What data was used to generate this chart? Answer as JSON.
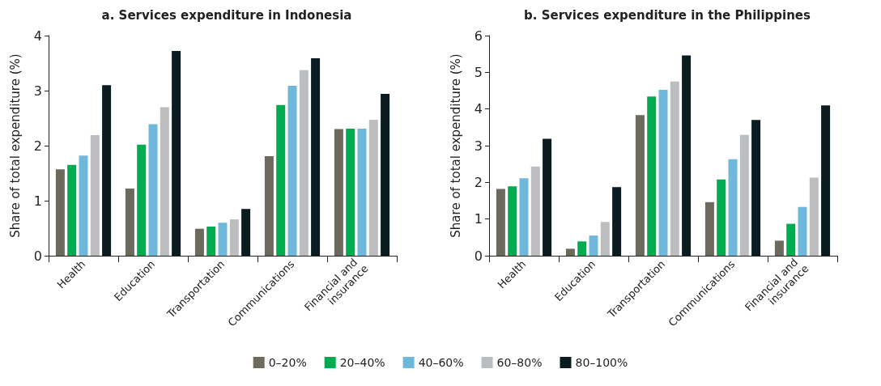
{
  "chart_data": [
    {
      "type": "bar",
      "title": "a. Services expenditure in Indonesia",
      "ylabel": "Share of total expenditure (%)",
      "categories": [
        "Health",
        "Education",
        "Transportation",
        "Communications",
        "Financial and insurance"
      ],
      "ylim": [
        0,
        4
      ],
      "yticks": [
        0,
        1,
        2,
        3,
        4
      ],
      "grid": false,
      "legend": false,
      "series": [
        {
          "color": "#6b6a5d",
          "values": [
            1.57,
            1.22,
            0.49,
            1.81,
            2.3
          ]
        },
        {
          "color": "#00ac50",
          "values": [
            1.65,
            2.02,
            0.53,
            2.74,
            2.31
          ]
        },
        {
          "color": "#6fb8db",
          "values": [
            1.82,
            2.39,
            0.6,
            3.09,
            2.31
          ]
        },
        {
          "color": "#bcbdbf",
          "values": [
            2.19,
            2.7,
            0.66,
            3.37,
            2.47
          ]
        },
        {
          "color": "#0b1b20",
          "values": [
            3.1,
            3.72,
            0.85,
            3.59,
            2.94
          ]
        }
      ]
    },
    {
      "type": "bar",
      "title": "b. Services expenditure in the Philippines",
      "ylabel": "Share of total expenditure (%)",
      "categories": [
        "Health",
        "Education",
        "Transportation",
        "Communications",
        "Financial and insurance"
      ],
      "ylim": [
        0,
        6
      ],
      "yticks": [
        0,
        1,
        2,
        3,
        4,
        5,
        6
      ],
      "grid": false,
      "legend": "bottom",
      "series": [
        {
          "name": "0–20%",
          "color": "#6b6a5d",
          "values": [
            1.82,
            0.19,
            3.83,
            1.46,
            0.41
          ]
        },
        {
          "name": "20–40%",
          "color": "#00ac50",
          "values": [
            1.89,
            0.39,
            4.34,
            2.08,
            0.87
          ]
        },
        {
          "name": "40–60%",
          "color": "#6fb8db",
          "values": [
            2.11,
            0.55,
            4.52,
            2.63,
            1.33
          ]
        },
        {
          "name": "60–80%",
          "color": "#bcbdbf",
          "values": [
            2.43,
            0.92,
            4.75,
            3.29,
            2.13
          ]
        },
        {
          "name": "80–100%",
          "color": "#0b1b20",
          "values": [
            3.19,
            1.87,
            5.46,
            3.7,
            4.1
          ]
        }
      ]
    }
  ]
}
